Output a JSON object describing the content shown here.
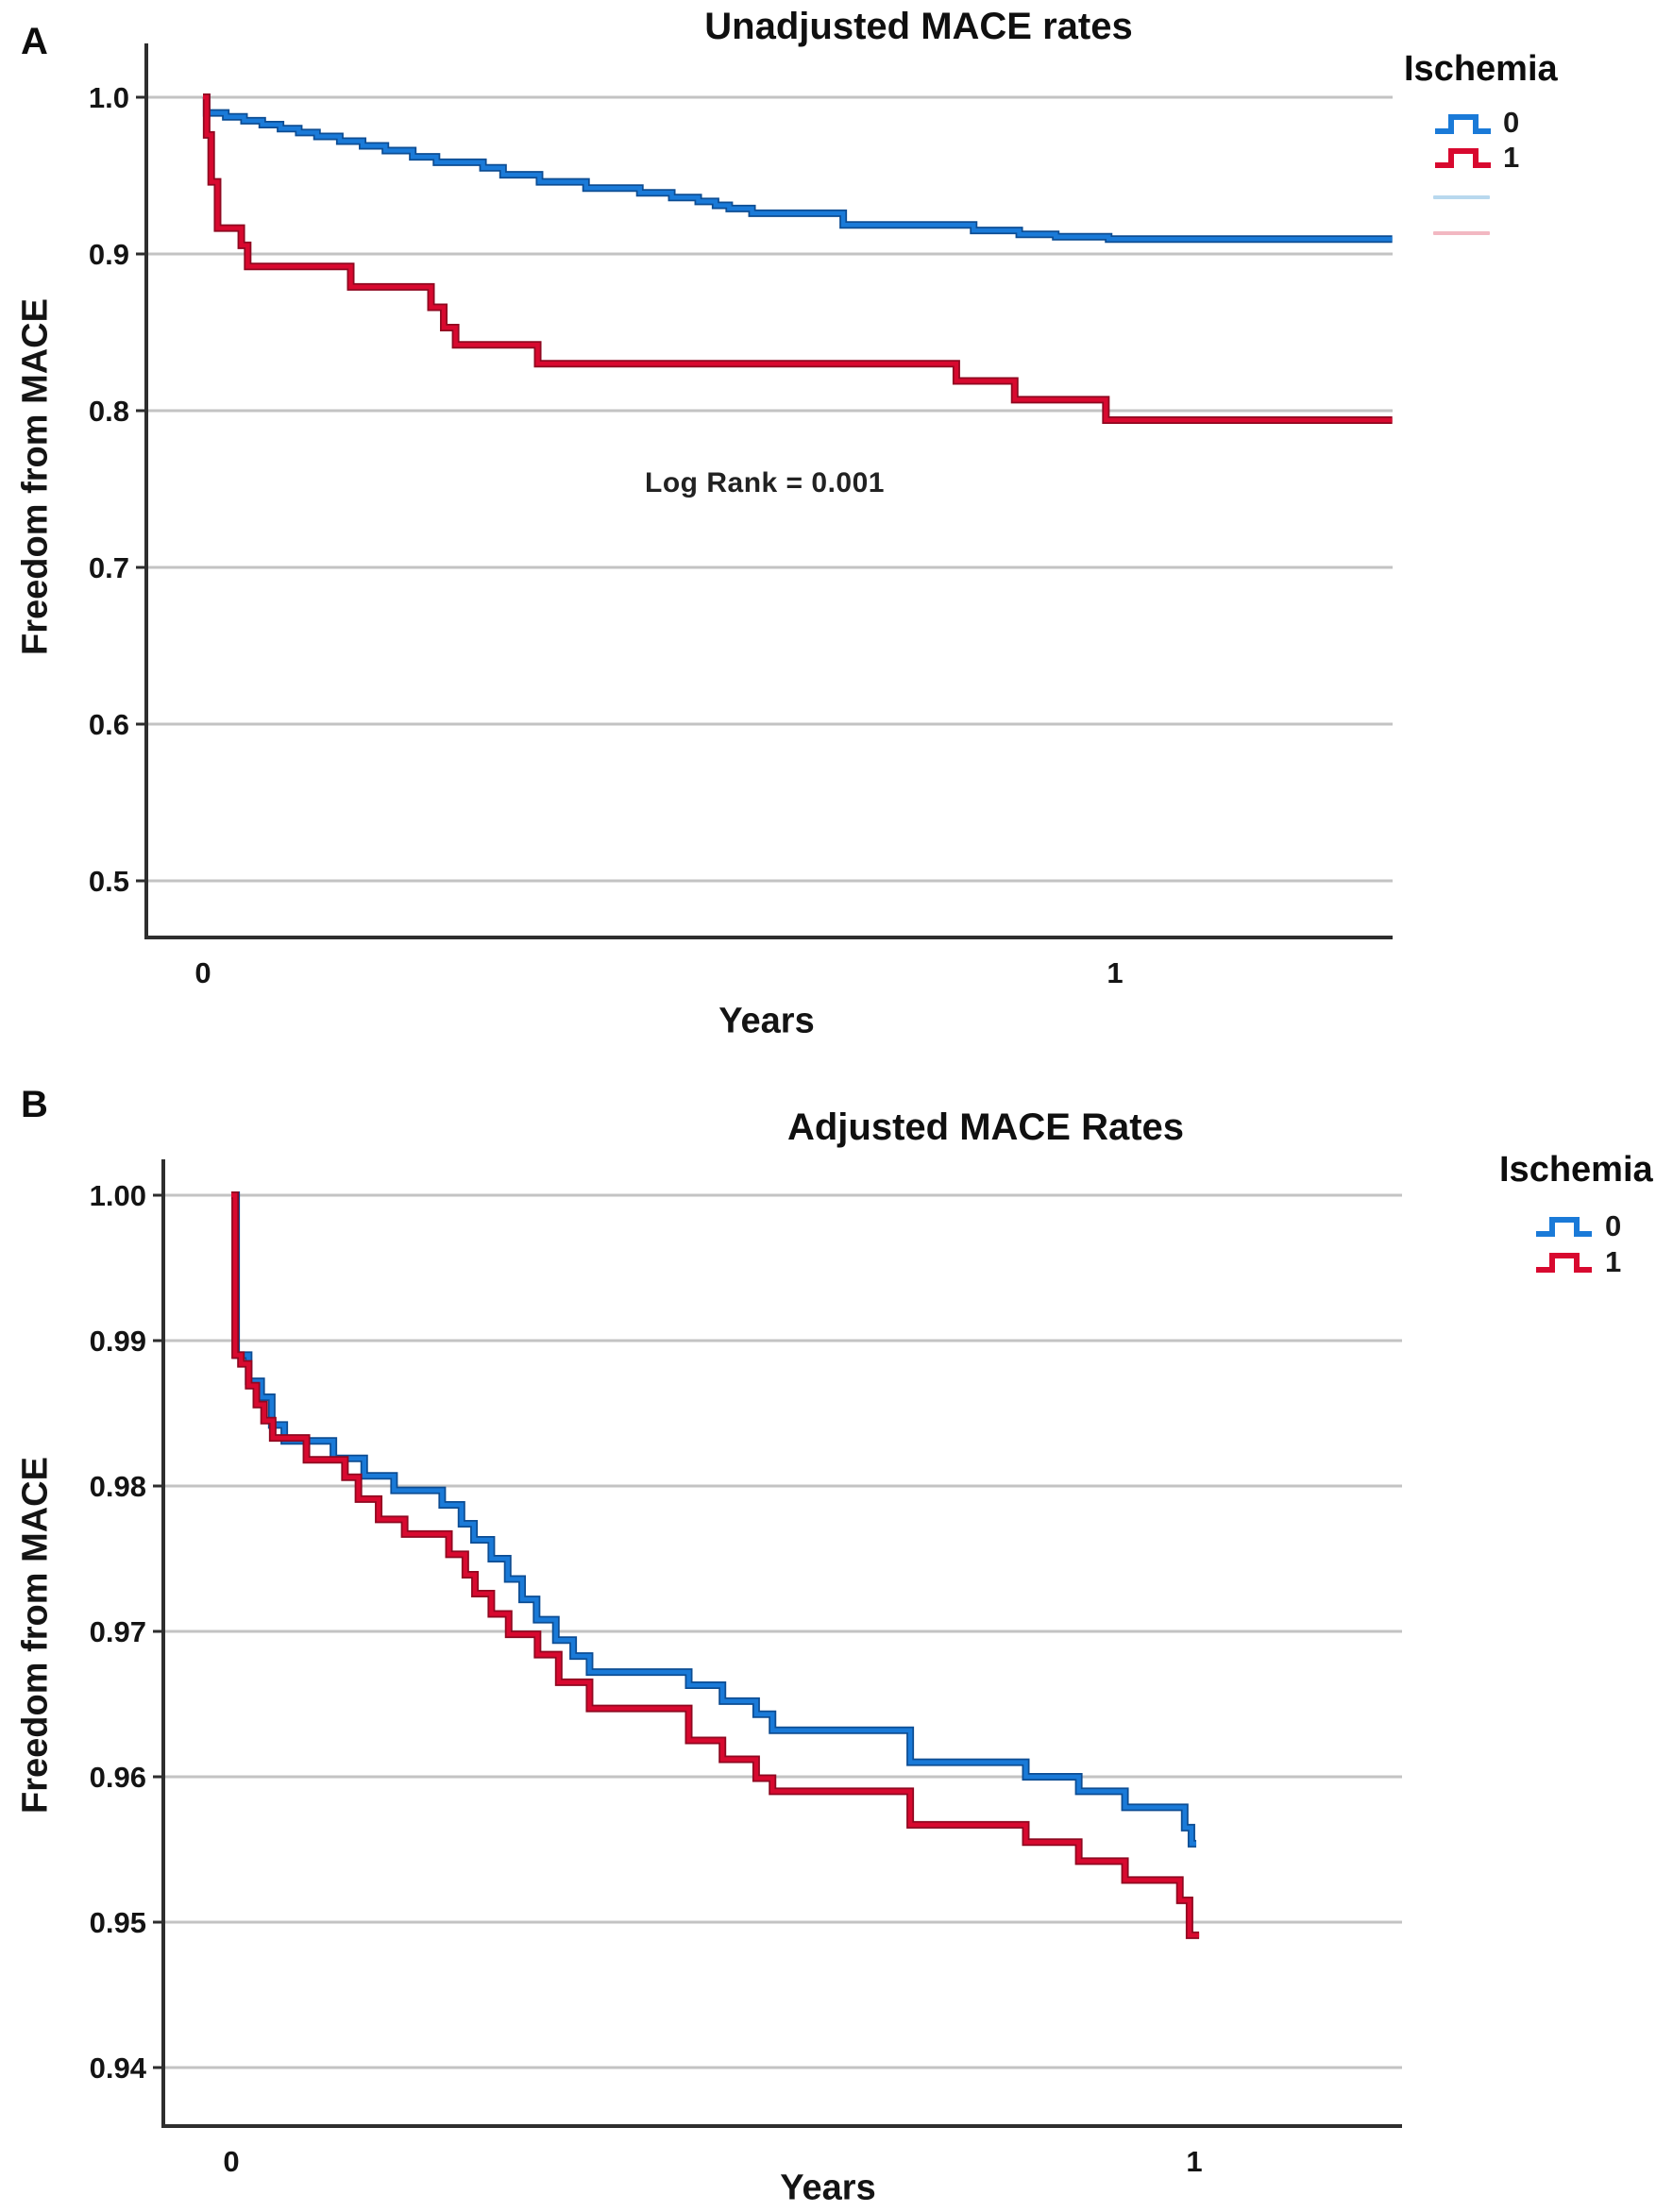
{
  "figure": {
    "background": "#ffffff",
    "accent_blue": "#1a7ad8",
    "accent_red": "#d8092f",
    "gridline_color": "#c3c3c3",
    "axis_color": "#2e2e2e",
    "panels": [
      {
        "panel_label": "A",
        "title": "Unadjusted MACE rates",
        "ylabel": "Freedom from MACE",
        "xlabel": "Years",
        "annotation": "Log Rank = 0.001",
        "legend": {
          "title": "Ischemia",
          "entries": [
            {
              "label": "0",
              "color": "#1a7ad8"
            },
            {
              "label": "1",
              "color": "#d8092f"
            }
          ],
          "censored_lines": [
            {
              "color": "#b8d8ee"
            },
            {
              "color": "#f2b8c2"
            }
          ]
        },
        "chart_data": {
          "type": "line",
          "subtype": "kaplan-meier-step",
          "title": "Unadjusted MACE rates",
          "xlabel": "Years",
          "ylabel": "Freedom from MACE",
          "xlim": [
            -0.062,
            1.304
          ],
          "ylim": [
            0.46,
            1.034
          ],
          "grid": "horizontal",
          "legend_position": "top-right",
          "xticks": [
            {
              "t": 0,
              "label": "0"
            },
            {
              "t": 1,
              "label": "1"
            }
          ],
          "yticks": [
            {
              "v": 1.0,
              "label": "1.0"
            },
            {
              "v": 0.9,
              "label": "0.9"
            },
            {
              "v": 0.8,
              "label": "0.8"
            },
            {
              "v": 0.7,
              "label": "0.7"
            },
            {
              "v": 0.6,
              "label": "0.6"
            },
            {
              "v": 0.5,
              "label": "0.5"
            }
          ],
          "series": [
            {
              "name": "Ischemia 0",
              "color": "#1a7ad8",
              "edge_color": "#0d4d93",
              "end_t": 1.304,
              "steps": [
                [
                  0,
                  1.0
                ],
                [
                  0.004,
                  0.99
                ],
                [
                  0.025,
                  0.9875
                ],
                [
                  0.045,
                  0.985
                ],
                [
                  0.065,
                  0.9825
                ],
                [
                  0.085,
                  0.98
                ],
                [
                  0.105,
                  0.9775
                ],
                [
                  0.125,
                  0.975
                ],
                [
                  0.15,
                  0.972
                ],
                [
                  0.175,
                  0.969
                ],
                [
                  0.2,
                  0.966
                ],
                [
                  0.23,
                  0.962
                ],
                [
                  0.256,
                  0.9585
                ],
                [
                  0.307,
                  0.955
                ],
                [
                  0.329,
                  0.9505
                ],
                [
                  0.369,
                  0.946
                ],
                [
                  0.42,
                  0.942
                ],
                [
                  0.479,
                  0.939
                ],
                [
                  0.514,
                  0.936
                ],
                [
                  0.543,
                  0.9335
                ],
                [
                  0.562,
                  0.931
                ],
                [
                  0.577,
                  0.929
                ],
                [
                  0.602,
                  0.926
                ],
                [
                  0.702,
                  0.9185
                ],
                [
                  0.845,
                  0.915
                ],
                [
                  0.895,
                  0.9125
                ],
                [
                  0.935,
                  0.911
                ],
                [
                  0.993,
                  0.9095
                ]
              ]
            },
            {
              "name": "Ischemia 1",
              "color": "#d8092f",
              "edge_color": "#8f0820",
              "end_t": 1.304,
              "steps": [
                [
                  0,
                  1.0
                ],
                [
                  0.004,
                  0.976
                ],
                [
                  0.009,
                  0.946
                ],
                [
                  0.016,
                  0.9165
                ],
                [
                  0.042,
                  0.9055
                ],
                [
                  0.049,
                  0.892
                ],
                [
                  0.162,
                  0.879
                ],
                [
                  0.25,
                  0.866
                ],
                [
                  0.264,
                  0.853
                ],
                [
                  0.277,
                  0.842
                ],
                [
                  0.367,
                  0.83
                ],
                [
                  0.826,
                  0.819
                ],
                [
                  0.89,
                  0.807
                ],
                [
                  0.99,
                  0.794
                ]
              ]
            }
          ]
        }
      },
      {
        "panel_label": "B",
        "title": "Adjusted MACE Rates",
        "ylabel": "Freedom from MACE",
        "xlabel": "Years",
        "annotation": "",
        "legend": {
          "title": "Ischemia",
          "entries": [
            {
              "label": "0",
              "color": "#1a7ad8"
            },
            {
              "label": "1",
              "color": "#d8092f"
            }
          ],
          "censored_lines": []
        },
        "chart_data": {
          "type": "line",
          "subtype": "kaplan-meier-step",
          "title": "Adjusted MACE Rates",
          "xlabel": "Years",
          "ylabel": "Freedom from MACE",
          "xlim": [
            -0.07,
            1.212
          ],
          "ylim": [
            0.9365,
            1.0025
          ],
          "grid": "horizontal",
          "legend_position": "top-right",
          "xticks": [
            {
              "t": 0,
              "label": "0"
            },
            {
              "t": 1,
              "label": "1"
            }
          ],
          "yticks": [
            {
              "v": 1.0,
              "label": "1.00"
            },
            {
              "v": 0.99,
              "label": "0.99"
            },
            {
              "v": 0.98,
              "label": "0.98"
            },
            {
              "v": 0.97,
              "label": "0.97"
            },
            {
              "v": 0.96,
              "label": "0.96"
            },
            {
              "v": 0.95,
              "label": "0.95"
            },
            {
              "v": 0.94,
              "label": "0.94"
            }
          ],
          "series": [
            {
              "name": "Ischemia 0",
              "color": "#1a7ad8",
              "edge_color": "#0d4d93",
              "end_t": 1.002,
              "steps": [
                [
                  0,
                  1.0
                ],
                [
                  0.005,
                  0.989
                ],
                [
                  0.018,
                  0.9872
                ],
                [
                  0.031,
                  0.9861
                ],
                [
                  0.042,
                  0.9842
                ],
                [
                  0.055,
                  0.9831
                ],
                [
                  0.106,
                  0.9819
                ],
                [
                  0.138,
                  0.9807
                ],
                [
                  0.169,
                  0.9797
                ],
                [
                  0.219,
                  0.9787
                ],
                [
                  0.239,
                  0.9774
                ],
                [
                  0.252,
                  0.9763
                ],
                [
                  0.27,
                  0.975
                ],
                [
                  0.287,
                  0.9736
                ],
                [
                  0.302,
                  0.9722
                ],
                [
                  0.317,
                  0.9708
                ],
                [
                  0.337,
                  0.9694
                ],
                [
                  0.355,
                  0.9683
                ],
                [
                  0.372,
                  0.9672
                ],
                [
                  0.475,
                  0.9663
                ],
                [
                  0.51,
                  0.9652
                ],
                [
                  0.545,
                  0.9643
                ],
                [
                  0.562,
                  0.9632
                ],
                [
                  0.705,
                  0.961
                ],
                [
                  0.825,
                  0.96
                ],
                [
                  0.88,
                  0.959
                ],
                [
                  0.928,
                  0.9579
                ],
                [
                  0.99,
                  0.9565
                ],
                [
                  0.997,
                  0.9554
                ]
              ]
            },
            {
              "name": "Ischemia 1",
              "color": "#d8092f",
              "edge_color": "#8f0820",
              "end_t": 1.005,
              "steps": [
                [
                  0,
                  1.0
                ],
                [
                  0.004,
                  0.989
                ],
                [
                  0.01,
                  0.9884
                ],
                [
                  0.018,
                  0.9869
                ],
                [
                  0.026,
                  0.9856
                ],
                [
                  0.034,
                  0.9845
                ],
                [
                  0.043,
                  0.9833
                ],
                [
                  0.078,
                  0.9818
                ],
                [
                  0.118,
                  0.9806
                ],
                [
                  0.132,
                  0.9791
                ],
                [
                  0.153,
                  0.9777
                ],
                [
                  0.18,
                  0.9767
                ],
                [
                  0.226,
                  0.9753
                ],
                [
                  0.243,
                  0.9739
                ],
                [
                  0.253,
                  0.9726
                ],
                [
                  0.27,
                  0.9712
                ],
                [
                  0.288,
                  0.9698
                ],
                [
                  0.318,
                  0.9684
                ],
                [
                  0.34,
                  0.9665
                ],
                [
                  0.372,
                  0.9647
                ],
                [
                  0.475,
                  0.9625
                ],
                [
                  0.51,
                  0.9612
                ],
                [
                  0.545,
                  0.9599
                ],
                [
                  0.562,
                  0.959
                ],
                [
                  0.705,
                  0.9567
                ],
                [
                  0.825,
                  0.9555
                ],
                [
                  0.88,
                  0.9542
                ],
                [
                  0.928,
                  0.9529
                ],
                [
                  0.985,
                  0.9515
                ],
                [
                  0.995,
                  0.9491
                ]
              ]
            }
          ]
        }
      }
    ]
  }
}
